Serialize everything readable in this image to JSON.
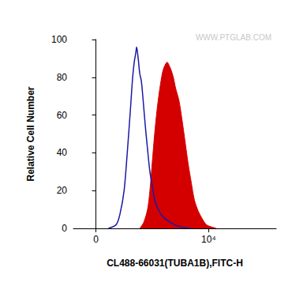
{
  "chart_data": {
    "type": "line",
    "x_label": "CL488-66031(TUBA1B),FITC-H",
    "y_label": "Relative Cell Number",
    "annotations": [
      "WWW.PTGLAB.COM"
    ],
    "xlim": [
      -2000,
      16000
    ],
    "xticks": [
      0,
      {
        "value": 10000,
        "label": "10⁴"
      }
    ],
    "ylim": [
      0,
      100
    ],
    "yticks": [
      0,
      20,
      40,
      60,
      80,
      100
    ],
    "grid": false,
    "series": [
      {
        "type": "area",
        "color": "#d40000",
        "x": [
          3890,
          4230,
          4580,
          4790,
          5000,
          5210,
          5410,
          5620,
          5830,
          5970,
          6180,
          6320,
          6520,
          6660,
          6870,
          7080,
          7360,
          7630,
          7910,
          8190,
          8470,
          8740,
          9090,
          9440,
          9790,
          10130,
          10690
        ],
        "values": [
          0,
          3,
          10,
          20,
          35,
          50,
          62,
          72,
          80,
          84,
          87,
          88,
          86,
          84,
          80,
          74,
          68,
          58,
          46,
          34,
          24,
          15,
          9,
          5,
          2,
          1,
          0
        ]
      },
      {
        "type": "line",
        "color": "#1a1aa6",
        "x": [
          1110,
          1800,
          2150,
          2500,
          2780,
          3050,
          3260,
          3400,
          3540,
          3610,
          3750,
          3890,
          4030,
          4160,
          4370,
          4580,
          4790,
          5070,
          5270,
          5620,
          5970,
          6660,
          7360,
          8400
        ],
        "values": [
          0,
          2,
          8,
          20,
          40,
          62,
          80,
          88,
          93,
          96,
          90,
          82,
          78,
          70,
          55,
          42,
          30,
          20,
          14,
          9,
          6,
          3,
          1,
          0
        ]
      }
    ]
  }
}
